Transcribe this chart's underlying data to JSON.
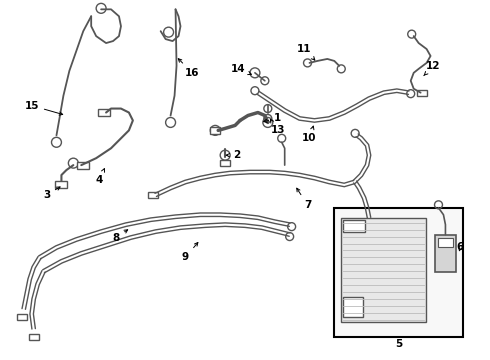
{
  "bg_color": "#ffffff",
  "line_color": "#555555",
  "label_color": "#000000",
  "box_color": "#000000",
  "figsize": [
    4.9,
    3.6
  ],
  "dpi": 100
}
